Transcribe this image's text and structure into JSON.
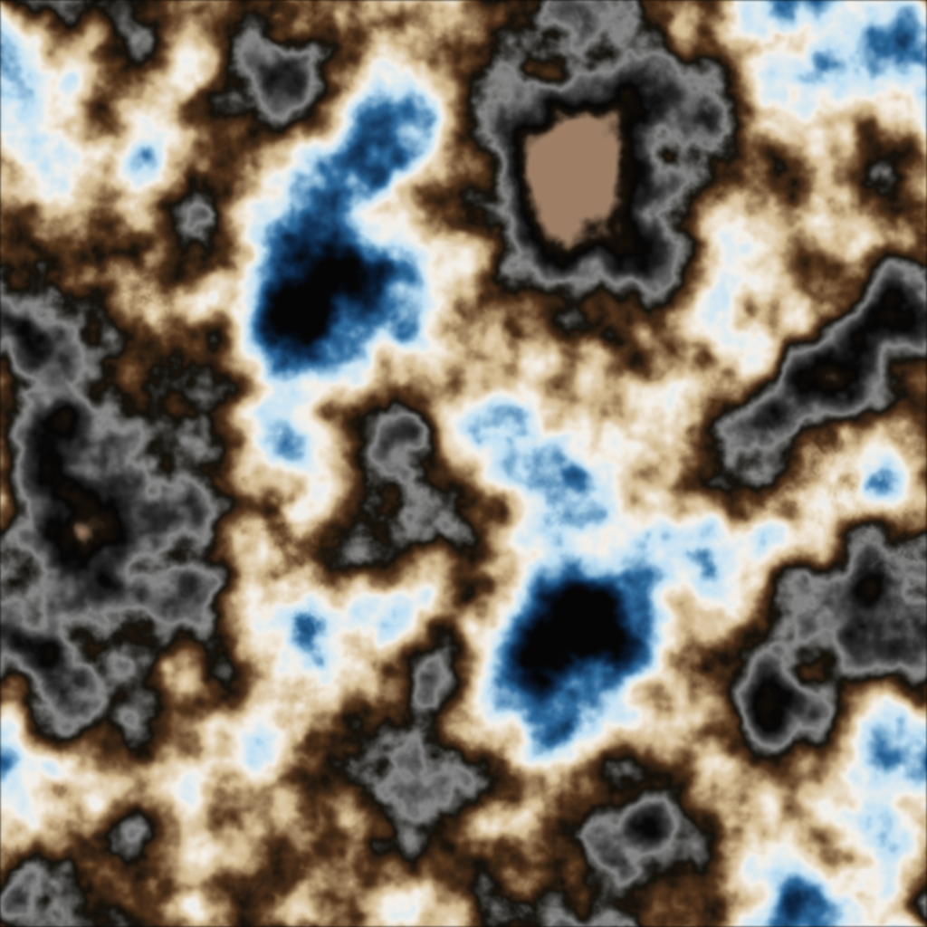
{
  "image": {
    "subject": "abstract-noise-texture",
    "palette": {
      "black": "#050505",
      "deep_blue": "#0b2a4a",
      "mid_blue": "#2f6a9c",
      "light_blue": "#bfe0f5",
      "white": "#f7f2ea",
      "cream": "#e9d8bd",
      "tan": "#b08a63",
      "brown": "#5a3a1e",
      "dark_brown": "#24160c",
      "gray": "#8f8f8f",
      "dark_gray": "#3a3a3a"
    }
  }
}
